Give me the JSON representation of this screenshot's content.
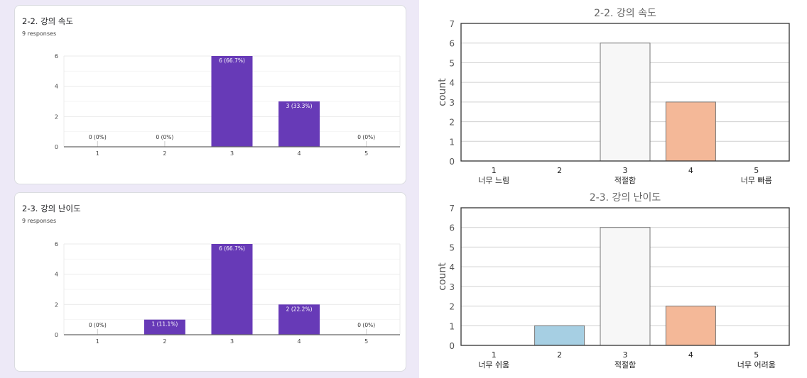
{
  "left_panel": {
    "background": "#ede9f7",
    "cards": [
      {
        "title": "2-2. 강의 속도",
        "responses": "9 responses"
      },
      {
        "title": "2-3. 강의 난이도",
        "responses": "9 responses"
      }
    ]
  },
  "chart_data": [
    {
      "type": "bar",
      "title": "2-2. 강의 속도",
      "subtitle": "9 responses",
      "categories": [
        "1",
        "2",
        "3",
        "4",
        "5"
      ],
      "values": [
        0,
        0,
        6,
        3,
        0
      ],
      "data_labels": [
        "0 (0%)",
        "0 (0%)",
        "6 (66.7%)",
        "3 (33.3%)",
        "0 (0%)"
      ],
      "yticks": [
        "0",
        "2",
        "4",
        "6"
      ],
      "ylim": [
        0,
        6
      ],
      "grid": true,
      "bar_color": "#673ab7"
    },
    {
      "type": "bar",
      "title": "2-3. 강의 난이도",
      "subtitle": "9 responses",
      "categories": [
        "1",
        "2",
        "3",
        "4",
        "5"
      ],
      "values": [
        0,
        1,
        6,
        2,
        0
      ],
      "data_labels": [
        "0 (0%)",
        "1 (11.1%)",
        "6 (66.7%)",
        "2 (22.2%)",
        "0 (0%)"
      ],
      "yticks": [
        "0",
        "2",
        "4",
        "6"
      ],
      "ylim": [
        0,
        6
      ],
      "grid": true,
      "bar_color": "#673ab7"
    },
    {
      "type": "bar",
      "title": "2-2. 강의 속도",
      "ylabel": "count",
      "categories": [
        "1",
        "2",
        "3",
        "4",
        "5"
      ],
      "category_sublabels": [
        "너무 느림",
        "",
        "적절함",
        "",
        "너무 빠름"
      ],
      "values": [
        0,
        0,
        6,
        3,
        0
      ],
      "yticks": [
        "0",
        "1",
        "2",
        "3",
        "4",
        "5",
        "6",
        "7"
      ],
      "ylim": [
        0,
        7
      ],
      "grid": true,
      "bar_colors": [
        "#a6cfe3",
        "#a6cfe3",
        "#f7f7f7",
        "#f4b898",
        "#f4b898"
      ]
    },
    {
      "type": "bar",
      "title": "2-3. 강의 난이도",
      "ylabel": "count",
      "categories": [
        "1",
        "2",
        "3",
        "4",
        "5"
      ],
      "category_sublabels": [
        "너무 쉬움",
        "",
        "적절함",
        "",
        "너무 어려움"
      ],
      "values": [
        0,
        1,
        6,
        2,
        0
      ],
      "yticks": [
        "0",
        "1",
        "2",
        "3",
        "4",
        "5",
        "6",
        "7"
      ],
      "ylim": [
        0,
        7
      ],
      "grid": true,
      "bar_colors": [
        "#a6cfe3",
        "#a6cfe3",
        "#f7f7f7",
        "#f4b898",
        "#f4b898"
      ]
    }
  ]
}
